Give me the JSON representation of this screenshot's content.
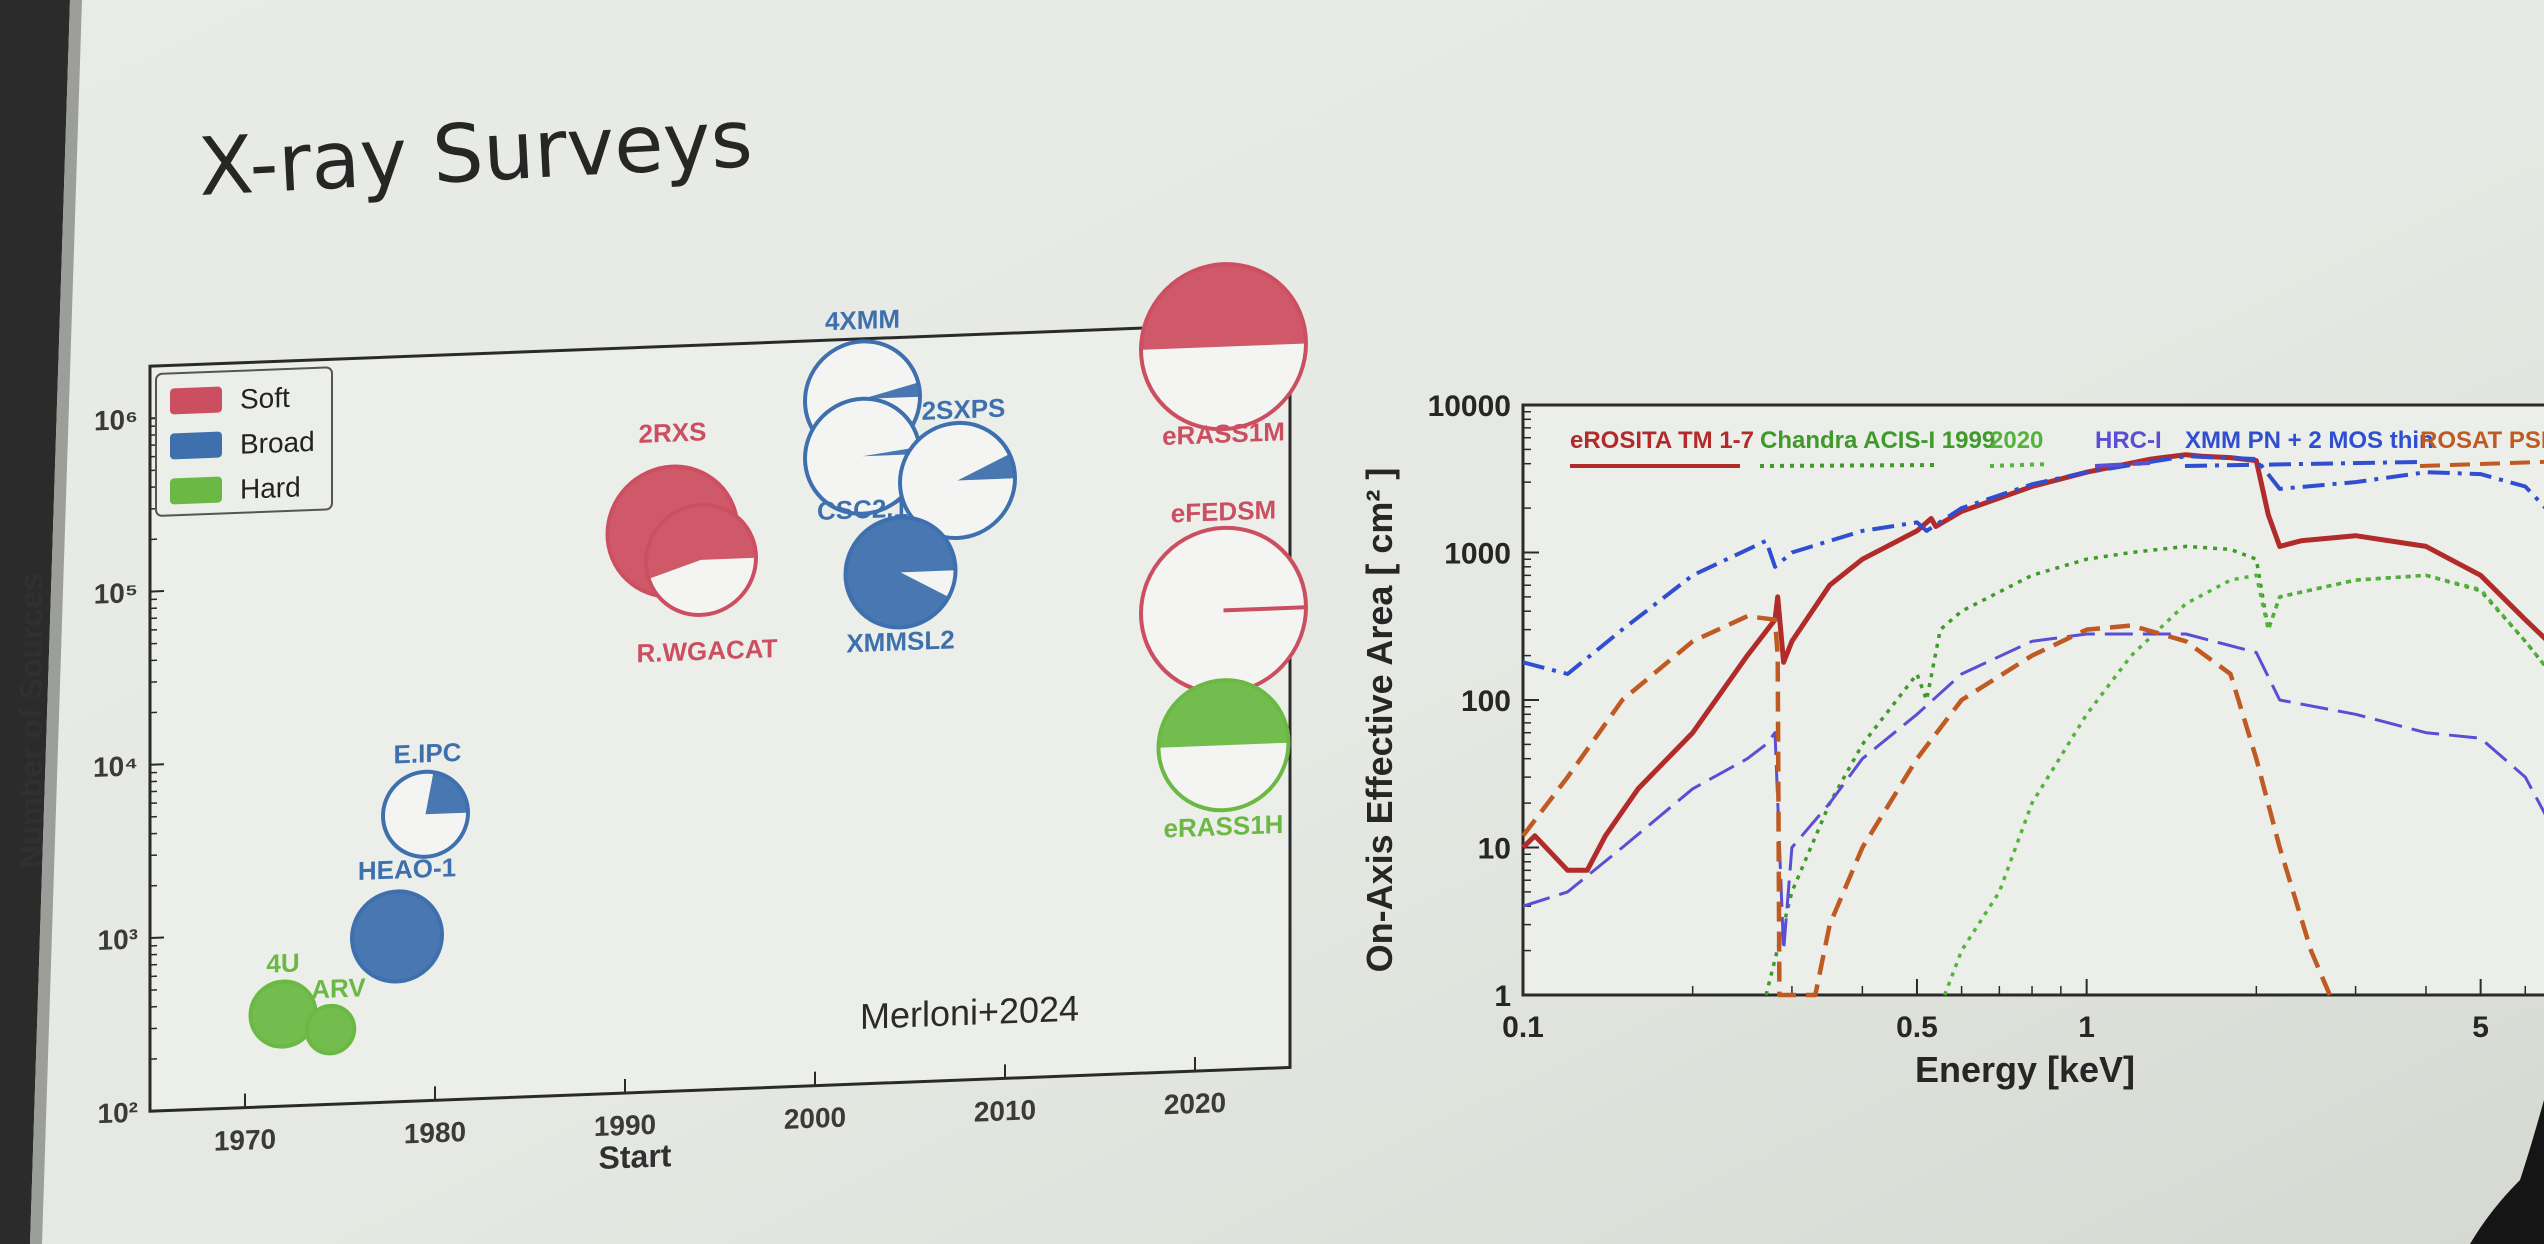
{
  "slide": {
    "title": "X-ray Surveys"
  },
  "colors": {
    "soft": "#cc4f61",
    "broad": "#3e70ae",
    "hard": "#6cb845"
  },
  "chart_data": [
    {
      "type": "scatter",
      "title": "",
      "xlabel": "Start",
      "ylabel": "Number of Sources",
      "xlim": [
        1965,
        2025
      ],
      "ylim": [
        100,
        2000000
      ],
      "yscale": "log",
      "xticks": [
        "1970",
        "1980",
        "1990",
        "2000",
        "2010",
        "2020"
      ],
      "yticks": [
        "10²",
        "10³",
        "10⁴",
        "10⁵",
        "10⁶"
      ],
      "legend": {
        "placement": "top-left",
        "items": [
          {
            "name": "Soft",
            "color": "soft"
          },
          {
            "name": "Broad",
            "color": "broad"
          },
          {
            "name": "Hard",
            "color": "hard"
          }
        ]
      },
      "annotation": "Merloni+2024",
      "points": [
        {
          "name": "4U",
          "band": "hard",
          "x": 1972,
          "y": 340,
          "size": 1.3,
          "fill_fraction": 1.0
        },
        {
          "name": "ARV",
          "band": "hard",
          "x": 1974.5,
          "y": 270,
          "size": 0.95,
          "fill_fraction": 1.0
        },
        {
          "name": "HEAO-1",
          "band": "broad",
          "x": 1978,
          "y": 900,
          "size": 1.8,
          "fill_fraction": 1.0
        },
        {
          "name": "E.IPC",
          "band": "broad",
          "x": 1979.5,
          "y": 4500,
          "size": 1.7,
          "fill_fraction": 0.22
        },
        {
          "name": "2RXS",
          "band": "soft",
          "x": 1992.5,
          "y": 170000,
          "size": 2.6,
          "fill_fraction": 1.0
        },
        {
          "name": "R.WGACAT",
          "band": "soft",
          "x": 1994,
          "y": 115000,
          "size": 2.2,
          "fill_fraction": 0.55
        },
        {
          "name": "4XMM",
          "band": "broad",
          "x": 2002.5,
          "y": 900000,
          "size": 2.3,
          "fill_fraction": 0.04
        },
        {
          "name": "CSC2.1",
          "band": "broad",
          "x": 2002.5,
          "y": 420000,
          "size": 2.3,
          "fill_fraction": 0.02
        },
        {
          "name": "2SXPS",
          "band": "broad",
          "x": 2007.5,
          "y": 290000,
          "size": 2.3,
          "fill_fraction": 0.07
        },
        {
          "name": "XMMSL2",
          "band": "broad",
          "x": 2004.5,
          "y": 88000,
          "size": 2.2,
          "fill_fraction": 0.92
        },
        {
          "name": "eRASS1M",
          "band": "soft",
          "x": 2021.5,
          "y": 1500000,
          "size": 3.3,
          "fill_fraction": 0.5
        },
        {
          "name": "eFEDSM",
          "band": "soft",
          "x": 2021.5,
          "y": 45000,
          "size": 3.3,
          "fill_fraction": 0.0
        },
        {
          "name": "eRASS1H",
          "band": "hard",
          "x": 2021.5,
          "y": 7500,
          "size": 2.6,
          "fill_fraction": 0.5
        }
      ]
    },
    {
      "type": "line",
      "title": "",
      "xlabel": "Energy  [keV]",
      "ylabel": "On-Axis Effective Area  [ cm² ]",
      "xscale": "log",
      "yscale": "log",
      "xlim": [
        0.1,
        7
      ],
      "ylim": [
        1,
        10000
      ],
      "xticks": [
        {
          "v": 0.1,
          "t": "0.1"
        },
        {
          "v": 0.5,
          "t": "0.5"
        },
        {
          "v": 1,
          "t": "1"
        },
        {
          "v": 5,
          "t": "5"
        }
      ],
      "yticks": [
        {
          "v": 1,
          "t": "1"
        },
        {
          "v": 10,
          "t": "10"
        },
        {
          "v": 100,
          "t": "100"
        },
        {
          "v": 1000,
          "t": "1000"
        },
        {
          "v": 10000,
          "t": "10000"
        }
      ],
      "legend": {
        "placement": "top",
        "items": [
          {
            "name": "eROSITA TM 1-7",
            "color": "#b22b2b",
            "dash": ""
          },
          {
            "name": "Chandra ACIS-I 1999",
            "color": "#3f9a2a",
            "dash": "4,6"
          },
          {
            "name": "2020",
            "color": "#52b43a",
            "dash": "4,6"
          },
          {
            "name": "HRC-I",
            "color": "#5a4fd4",
            "dash": "28,10"
          },
          {
            "name": "XMM PN + 2 MOS thin",
            "color": "#2f4ed0",
            "dash": "22,8,4,8"
          },
          {
            "name": "ROSAT PSPC",
            "color": "#bf5a22",
            "dash": "20,10"
          }
        ]
      },
      "series": [
        {
          "name": "eROSITA TM 1-7",
          "color": "#b22b2b",
          "width": 5,
          "dash": "",
          "points": [
            [
              0.1,
              10
            ],
            [
              0.105,
              12
            ],
            [
              0.12,
              7
            ],
            [
              0.13,
              7
            ],
            [
              0.14,
              12
            ],
            [
              0.16,
              25
            ],
            [
              0.2,
              60
            ],
            [
              0.25,
              200
            ],
            [
              0.28,
              350
            ],
            [
              0.283,
              500
            ],
            [
              0.29,
              180
            ],
            [
              0.3,
              250
            ],
            [
              0.35,
              600
            ],
            [
              0.4,
              900
            ],
            [
              0.5,
              1400
            ],
            [
              0.53,
              1700
            ],
            [
              0.54,
              1500
            ],
            [
              0.6,
              1900
            ],
            [
              0.8,
              2800
            ],
            [
              1.0,
              3500
            ],
            [
              1.3,
              4300
            ],
            [
              1.5,
              4600
            ],
            [
              1.6,
              4500
            ],
            [
              1.8,
              4400
            ],
            [
              2.0,
              4200
            ],
            [
              2.1,
              1800
            ],
            [
              2.2,
              1100
            ],
            [
              2.4,
              1200
            ],
            [
              3,
              1300
            ],
            [
              4,
              1100
            ],
            [
              5,
              700
            ],
            [
              6,
              350
            ],
            [
              7,
              200
            ]
          ]
        },
        {
          "name": "Chandra ACIS-I 1999",
          "color": "#3f9a2a",
          "width": 3.5,
          "dash": "4,6",
          "points": [
            [
              0.27,
              1
            ],
            [
              0.3,
              5
            ],
            [
              0.35,
              20
            ],
            [
              0.4,
              50
            ],
            [
              0.5,
              150
            ],
            [
              0.52,
              100
            ],
            [
              0.55,
              300
            ],
            [
              0.6,
              400
            ],
            [
              0.8,
              700
            ],
            [
              1.0,
              900
            ],
            [
              1.2,
              1000
            ],
            [
              1.5,
              1100
            ],
            [
              1.8,
              1050
            ],
            [
              2.0,
              900
            ],
            [
              2.1,
              300
            ],
            [
              2.2,
              500
            ],
            [
              3,
              650
            ],
            [
              4,
              700
            ],
            [
              5,
              550
            ],
            [
              6,
              250
            ],
            [
              7,
              120
            ]
          ]
        },
        {
          "name": "2020",
          "color": "#52b43a",
          "width": 3.5,
          "dash": "4,6",
          "points": [
            [
              0.56,
              1
            ],
            [
              0.6,
              2
            ],
            [
              0.7,
              5
            ],
            [
              0.8,
              20
            ],
            [
              1.0,
              80
            ],
            [
              1.2,
              200
            ],
            [
              1.5,
              450
            ],
            [
              1.8,
              650
            ],
            [
              2.0,
              700
            ],
            [
              2.1,
              300
            ],
            [
              2.2,
              500
            ],
            [
              3,
              650
            ],
            [
              4,
              700
            ],
            [
              5,
              560
            ],
            [
              6,
              250
            ],
            [
              7,
              120
            ]
          ]
        },
        {
          "name": "HRC-I",
          "color": "#5a4fd4",
          "width": 3,
          "dash": "28,10",
          "points": [
            [
              0.1,
              4
            ],
            [
              0.12,
              5
            ],
            [
              0.15,
              10
            ],
            [
              0.2,
              25
            ],
            [
              0.25,
              40
            ],
            [
              0.27,
              50
            ],
            [
              0.28,
              60
            ],
            [
              0.29,
              2
            ],
            [
              0.3,
              10
            ],
            [
              0.35,
              20
            ],
            [
              0.4,
              40
            ],
            [
              0.5,
              80
            ],
            [
              0.6,
              150
            ],
            [
              0.8,
              250
            ],
            [
              1.0,
              280
            ],
            [
              1.5,
              280
            ],
            [
              2.0,
              210
            ],
            [
              2.2,
              100
            ],
            [
              3,
              80
            ],
            [
              4,
              60
            ],
            [
              5,
              55
            ],
            [
              6,
              30
            ],
            [
              7,
              10
            ]
          ]
        },
        {
          "name": "XMM PN + 2 MOS thin",
          "color": "#2f4ed0",
          "width": 4,
          "dash": "22,8,4,8",
          "points": [
            [
              0.1,
              180
            ],
            [
              0.12,
              150
            ],
            [
              0.15,
              300
            ],
            [
              0.2,
              700
            ],
            [
              0.27,
              1200
            ],
            [
              0.28,
              800
            ],
            [
              0.3,
              1000
            ],
            [
              0.4,
              1400
            ],
            [
              0.5,
              1600
            ],
            [
              0.52,
              1400
            ],
            [
              0.6,
              2000
            ],
            [
              0.8,
              2900
            ],
            [
              1.0,
              3500
            ],
            [
              1.5,
              4500
            ],
            [
              2.0,
              4300
            ],
            [
              2.2,
              2700
            ],
            [
              3,
              3000
            ],
            [
              4,
              3500
            ],
            [
              5,
              3400
            ],
            [
              6,
              2800
            ],
            [
              7,
              1500
            ]
          ]
        },
        {
          "name": "ROSAT PSPC",
          "color": "#bf5a22",
          "width": 4.5,
          "dash": "20,10",
          "points": [
            [
              0.1,
              12
            ],
            [
              0.12,
              30
            ],
            [
              0.15,
              100
            ],
            [
              0.2,
              250
            ],
            [
              0.25,
              370
            ],
            [
              0.28,
              350
            ],
            [
              0.283,
              200
            ],
            [
              0.285,
              1
            ],
            [
              0.33,
              1
            ],
            [
              0.35,
              3
            ],
            [
              0.4,
              10
            ],
            [
              0.5,
              40
            ],
            [
              0.6,
              100
            ],
            [
              0.8,
              200
            ],
            [
              1.0,
              300
            ],
            [
              1.2,
              320
            ],
            [
              1.5,
              250
            ],
            [
              1.8,
              150
            ],
            [
              2.0,
              40
            ],
            [
              2.2,
              10
            ],
            [
              2.5,
              2
            ],
            [
              2.7,
              1
            ]
          ]
        }
      ]
    }
  ]
}
